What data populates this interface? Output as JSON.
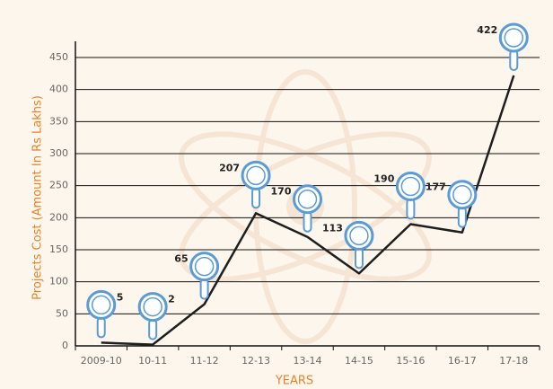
{
  "chart_data": {
    "type": "line",
    "y_label": "Projects Cost (Amount In Rs Lakhs)",
    "x_label": "YEARS",
    "categories": [
      "2009-10",
      "10-11",
      "11-12",
      "12-13",
      "13-14",
      "14-15",
      "15-16",
      "16-17",
      "17-18"
    ],
    "values": [
      5,
      2,
      65,
      207,
      170,
      113,
      190,
      177,
      422
    ],
    "color": "#1e1e1e",
    "marker_color": "#5b9bd5",
    "ylim": [
      0,
      450
    ],
    "yticks": [
      0,
      50,
      100,
      150,
      200,
      250,
      300,
      350,
      400,
      450
    ],
    "grid": true
  }
}
